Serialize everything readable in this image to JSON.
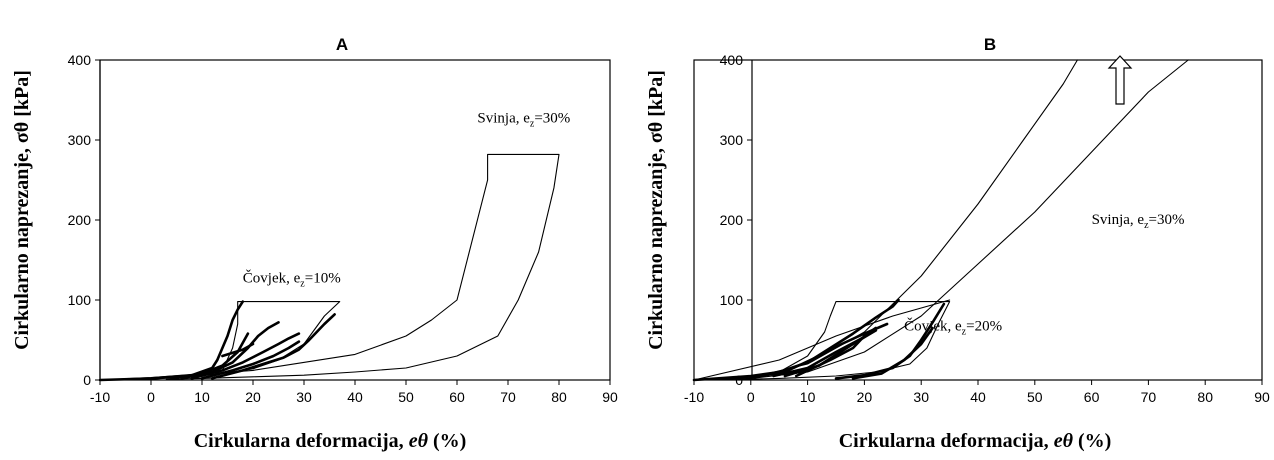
{
  "chart_data": [
    {
      "type": "line",
      "title": "A",
      "xlabel": "Cirkularna deformacija, ",
      "xlabel_symbol": "eθ",
      "xlabel_unit": " (%)",
      "ylabel": "Cirkularno naprezanje, σθ [kPa]",
      "xlim": [
        -10,
        90
      ],
      "ylim": [
        0,
        400
      ],
      "xticks": [
        "-10",
        "0",
        "10",
        "20",
        "30",
        "40",
        "50",
        "60",
        "70",
        "80",
        "90"
      ],
      "yticks": [
        "0",
        "100",
        "200",
        "300",
        "400"
      ],
      "annotations": [
        {
          "text": "Čovjek, e",
          "sub": "z",
          "tail": "=10%",
          "x": 18,
          "y": 122
        },
        {
          "text": "Svinja, e",
          "sub": "z",
          "tail": "=30%",
          "x": 64,
          "y": 322
        }
      ],
      "series": [
        {
          "style": "thin",
          "x": [
            -10,
            0,
            10,
            14,
            16,
            17,
            17,
            37,
            34,
            30,
            25,
            20,
            14,
            5,
            0,
            -10
          ],
          "y": [
            0,
            2,
            5,
            12,
            40,
            70,
            98,
            98,
            80,
            45,
            25,
            14,
            8,
            3,
            1,
            0
          ]
        },
        {
          "style": "thin",
          "x": [
            -10,
            0,
            20,
            40,
            50,
            55,
            60,
            62,
            64,
            66,
            66,
            80,
            79,
            76,
            72,
            68,
            60,
            50,
            40,
            30,
            20,
            10,
            3
          ],
          "y": [
            0,
            3,
            12,
            32,
            55,
            75,
            100,
            150,
            200,
            250,
            282,
            282,
            240,
            160,
            100,
            55,
            30,
            15,
            10,
            6,
            4,
            2,
            1
          ]
        },
        {
          "style": "thick",
          "x": [
            -10,
            0,
            8,
            12,
            13,
            15,
            16,
            17,
            18
          ],
          "y": [
            0,
            2,
            6,
            15,
            25,
            55,
            75,
            88,
            98
          ]
        },
        {
          "style": "thick",
          "x": [
            4,
            10,
            14,
            17,
            19
          ],
          "y": [
            2,
            8,
            18,
            35,
            58
          ]
        },
        {
          "style": "thick",
          "x": [
            6,
            12,
            16,
            19,
            21,
            23,
            25
          ],
          "y": [
            2,
            10,
            22,
            40,
            55,
            65,
            72
          ]
        },
        {
          "style": "thick",
          "x": [
            8,
            14,
            18,
            22,
            25,
            27,
            29
          ],
          "y": [
            2,
            12,
            22,
            35,
            45,
            52,
            58
          ]
        },
        {
          "style": "thick",
          "x": [
            10,
            16,
            20,
            24,
            27,
            29
          ],
          "y": [
            2,
            12,
            20,
            30,
            40,
            48
          ]
        },
        {
          "style": "thick",
          "x": [
            12,
            18,
            22,
            26,
            29,
            31,
            34,
            36
          ],
          "y": [
            2,
            12,
            20,
            28,
            38,
            50,
            70,
            82
          ]
        },
        {
          "style": "thick",
          "x": [
            14,
            18,
            20
          ],
          "y": [
            30,
            38,
            45
          ]
        }
      ]
    },
    {
      "type": "line",
      "title": "B",
      "xlabel": "Cirkularna deformacija, ",
      "xlabel_symbol": "eθ",
      "xlabel_unit": " (%)",
      "ylabel": "Cirkularno naprezanje, σθ [kPa]",
      "xlim": [
        -10,
        90
      ],
      "ylim": [
        0,
        400
      ],
      "xticks": [
        "-10",
        "0",
        "10",
        "20",
        "30",
        "40",
        "50",
        "60",
        "70",
        "80",
        "90"
      ],
      "yticks": [
        "0",
        "100",
        "200",
        "300",
        "400"
      ],
      "annotations": [
        {
          "text": "Svinja, e",
          "sub": "z",
          "tail": "=30%",
          "x": 60,
          "y": 195
        },
        {
          "text": "Čovjek, e",
          "sub": "z",
          "tail": "=20%",
          "x": 27,
          "y": 62
        }
      ],
      "arrow": {
        "direction": "up",
        "x": 65,
        "y_from": 345,
        "y_to": 405
      },
      "series": [
        {
          "style": "thin",
          "x": [
            -10,
            0,
            10,
            20,
            30,
            40,
            48,
            55,
            57.5
          ],
          "y": [
            0,
            3,
            20,
            60,
            130,
            220,
            300,
            370,
            400
          ]
        },
        {
          "style": "thin",
          "x": [
            -10,
            0,
            10,
            20,
            30,
            40,
            50,
            60,
            70,
            77
          ],
          "y": [
            0,
            2,
            10,
            35,
            80,
            145,
            210,
            285,
            360,
            400
          ]
        },
        {
          "style": "thin",
          "x": [
            -5,
            5,
            10,
            13,
            14,
            15,
            35,
            33,
            31,
            28,
            22,
            15,
            5,
            -5
          ],
          "y": [
            0,
            10,
            30,
            60,
            80,
            98,
            98,
            70,
            40,
            20,
            10,
            5,
            2,
            0
          ]
        },
        {
          "style": "thin",
          "x": [
            -10,
            5,
            15,
            25,
            35
          ],
          "y": [
            0,
            25,
            55,
            80,
            100
          ]
        },
        {
          "style": "thick",
          "x": [
            -10,
            0,
            5,
            10,
            14,
            18,
            22,
            25,
            26
          ],
          "y": [
            0,
            5,
            10,
            22,
            40,
            58,
            78,
            92,
            100
          ]
        },
        {
          "style": "thick",
          "x": [
            0,
            6,
            12,
            16,
            20,
            24
          ],
          "y": [
            3,
            10,
            30,
            45,
            58,
            70
          ]
        },
        {
          "style": "thick",
          "x": [
            4,
            10,
            15,
            19,
            22
          ],
          "y": [
            5,
            15,
            35,
            50,
            62
          ]
        },
        {
          "style": "thick",
          "x": [
            6,
            12,
            18,
            22
          ],
          "y": [
            5,
            18,
            45,
            62
          ]
        },
        {
          "style": "thick",
          "x": [
            8,
            14,
            18,
            20,
            22
          ],
          "y": [
            5,
            25,
            40,
            55,
            65
          ]
        },
        {
          "style": "thick",
          "x": [
            15,
            20,
            25,
            28,
            30,
            32,
            34
          ],
          "y": [
            2,
            6,
            15,
            30,
            50,
            72,
            95
          ]
        },
        {
          "style": "thick",
          "x": [
            18,
            23,
            27,
            30,
            32
          ],
          "y": [
            2,
            8,
            25,
            45,
            65
          ]
        }
      ]
    }
  ]
}
